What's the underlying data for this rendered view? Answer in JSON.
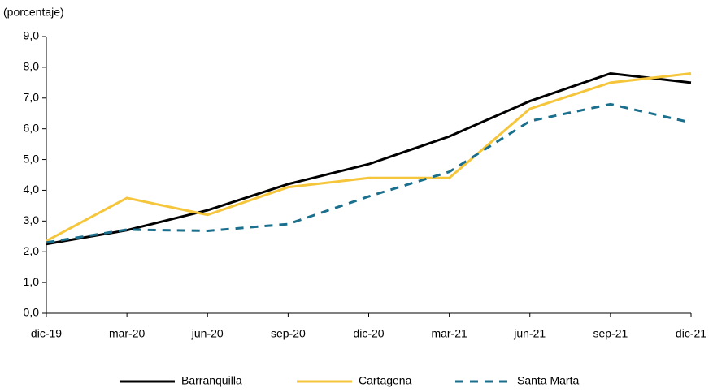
{
  "chart_data": {
    "type": "line",
    "y_label": "(porcentaje)",
    "categories": [
      "dic-19",
      "mar-20",
      "jun-20",
      "sep-20",
      "dic-20",
      "mar-21",
      "jun-21",
      "sep-21",
      "dic-21"
    ],
    "series": [
      {
        "name": "Barranquilla",
        "color": "#000000",
        "dash": "solid",
        "values": [
          2.25,
          2.7,
          3.35,
          4.2,
          4.85,
          5.75,
          6.9,
          7.8,
          7.5
        ]
      },
      {
        "name": "Cartagena",
        "color": "#f5c63c",
        "dash": "solid",
        "values": [
          2.35,
          3.75,
          3.2,
          4.1,
          4.4,
          4.4,
          6.65,
          7.5,
          7.8
        ]
      },
      {
        "name": "Santa Marta",
        "color": "#1a6f8c",
        "dash": "dashed",
        "values": [
          2.3,
          2.72,
          2.68,
          2.9,
          3.8,
          4.6,
          6.25,
          6.8,
          6.2
        ]
      }
    ],
    "ylim": [
      0,
      9
    ],
    "yticks": [
      {
        "value": 0,
        "label": "0,0"
      },
      {
        "value": 1,
        "label": "1,0"
      },
      {
        "value": 2,
        "label": "2,0"
      },
      {
        "value": 3,
        "label": "3,0"
      },
      {
        "value": 4,
        "label": "4,0"
      },
      {
        "value": 5,
        "label": "5,0"
      },
      {
        "value": 6,
        "label": "6,0"
      },
      {
        "value": 7,
        "label": "7,0"
      },
      {
        "value": 8,
        "label": "8,0"
      },
      {
        "value": 9,
        "label": "9,0"
      }
    ],
    "grid": false,
    "legend": "bottom"
  }
}
